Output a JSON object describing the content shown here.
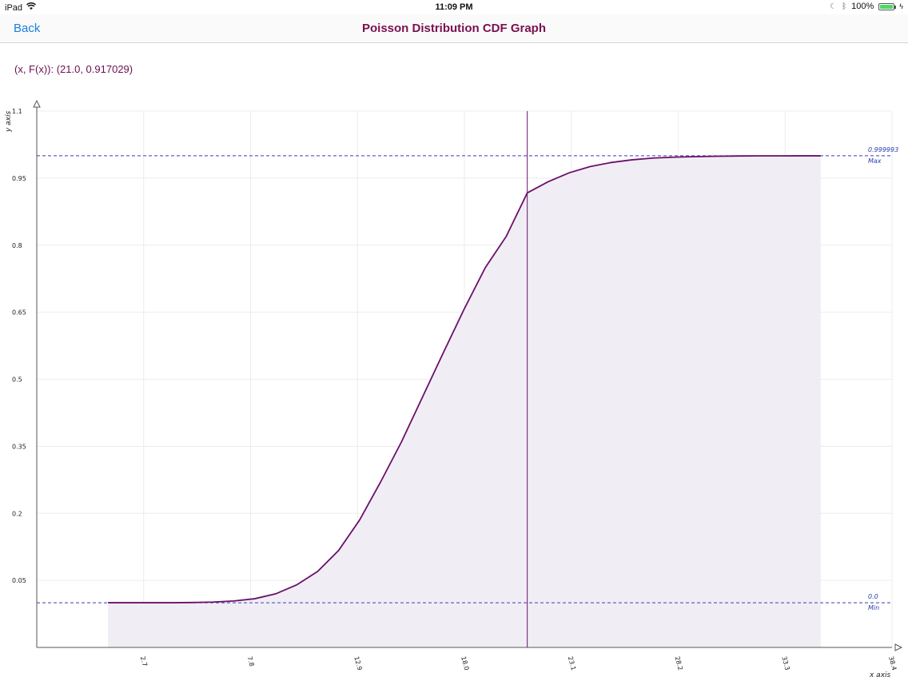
{
  "status": {
    "device": "iPad",
    "time": "11:09 PM",
    "battery": "100%",
    "battery_level": 1.0,
    "icons": [
      "wifi-icon",
      "moon-icon",
      "bluetooth-icon",
      "battery-icon",
      "charging-icon"
    ]
  },
  "nav": {
    "back_label": "Back",
    "title": "Poisson Distribution CDF Graph"
  },
  "readout": "(x, F(x)): (21.0, 0.917029)",
  "colors": {
    "accent": "#1a7fe0",
    "title": "#7a1050",
    "curve": "#6b0f6b",
    "fill": "#f0eef4",
    "reference": "#3a3fb0"
  },
  "chart_data": {
    "type": "area",
    "xlabel": "x axis",
    "ylabel": "y axis",
    "xlim": [
      -2.4,
      38.4
    ],
    "ylim": [
      -0.1,
      1.1
    ],
    "x_ticks": [
      "2.7",
      "7.8",
      "12.9",
      "18.0",
      "23.1",
      "28.2",
      "33.3",
      "38.4"
    ],
    "y_ticks": [
      "0.05",
      "0.2",
      "0.35",
      "0.5",
      "0.65",
      "0.8",
      "0.95",
      "1.1"
    ],
    "x": [
      1,
      2,
      3,
      4,
      5,
      6,
      7,
      8,
      9,
      10,
      11,
      12,
      13,
      14,
      15,
      16,
      17,
      18,
      19,
      20,
      21,
      22,
      23,
      24,
      25,
      26,
      27,
      28,
      29,
      30,
      31,
      32,
      33,
      34,
      35
    ],
    "y": [
      0,
      0,
      0,
      0,
      0.0005,
      0.0015,
      0.004,
      0.009,
      0.02,
      0.04,
      0.07,
      0.117,
      0.185,
      0.27,
      0.36,
      0.46,
      0.56,
      0.658,
      0.75,
      0.82,
      0.917,
      0.942,
      0.962,
      0.976,
      0.985,
      0.991,
      0.995,
      0.997,
      0.998,
      0.999,
      0.9995,
      0.9998,
      0.9999,
      0.99999,
      0.999993
    ],
    "max_line": {
      "value": 0.999993,
      "value_label": "0.999993",
      "label": "Max"
    },
    "min_line": {
      "value": 0.0,
      "value_label": "0.0",
      "label": "Min"
    },
    "cursor_x": 21.0,
    "grid": true
  }
}
